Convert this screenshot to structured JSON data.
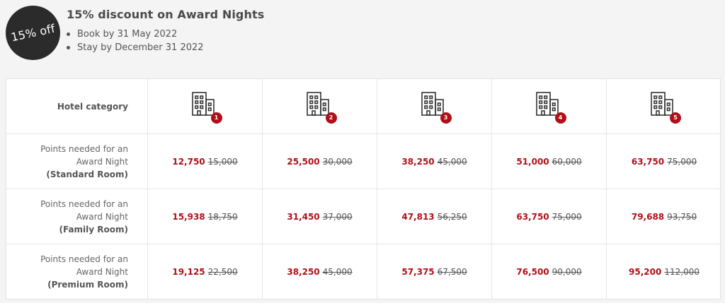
{
  "badge": {
    "text": "15% off"
  },
  "promo": {
    "title": "15% discount on Award Nights",
    "bullets": [
      "Book by 31 May 2022",
      "Stay by December 31 2022"
    ]
  },
  "table": {
    "header_label": "Hotel category",
    "categories": [
      "1",
      "2",
      "3",
      "4",
      "5"
    ],
    "category_icon": "hotel-building-icon",
    "rows": [
      {
        "label_line1": "Points needed for an",
        "label_line2": "Award Night",
        "label_room": "(Standard Room)",
        "prices": [
          {
            "new": "12,750",
            "old": "15,000"
          },
          {
            "new": "25,500",
            "old": "30,000"
          },
          {
            "new": "38,250",
            "old": "45,000"
          },
          {
            "new": "51,000",
            "old": "60,000"
          },
          {
            "new": "63,750",
            "old": "75,000"
          }
        ]
      },
      {
        "label_line1": "Points needed for an",
        "label_line2": "Award Night",
        "label_room": "(Family Room)",
        "prices": [
          {
            "new": "15,938",
            "old": "18,750"
          },
          {
            "new": "31,450",
            "old": "37,000"
          },
          {
            "new": "47,813",
            "old": "56,250"
          },
          {
            "new": "63,750",
            "old": "75,000"
          },
          {
            "new": "79,688",
            "old": "93,750"
          }
        ]
      },
      {
        "label_line1": "Points needed for an",
        "label_line2": "Award Night",
        "label_room": "(Premium Room)",
        "prices": [
          {
            "new": "19,125",
            "old": "22,500"
          },
          {
            "new": "38,250",
            "old": "45,000"
          },
          {
            "new": "57,375",
            "old": "67,500"
          },
          {
            "new": "76,500",
            "old": "90,000"
          },
          {
            "new": "95,200",
            "old": "112,000"
          }
        ]
      }
    ]
  },
  "colors": {
    "accent": "#b10f18",
    "badge_bg": "#2b2b2b",
    "page_bg": "#f4f4f4"
  }
}
